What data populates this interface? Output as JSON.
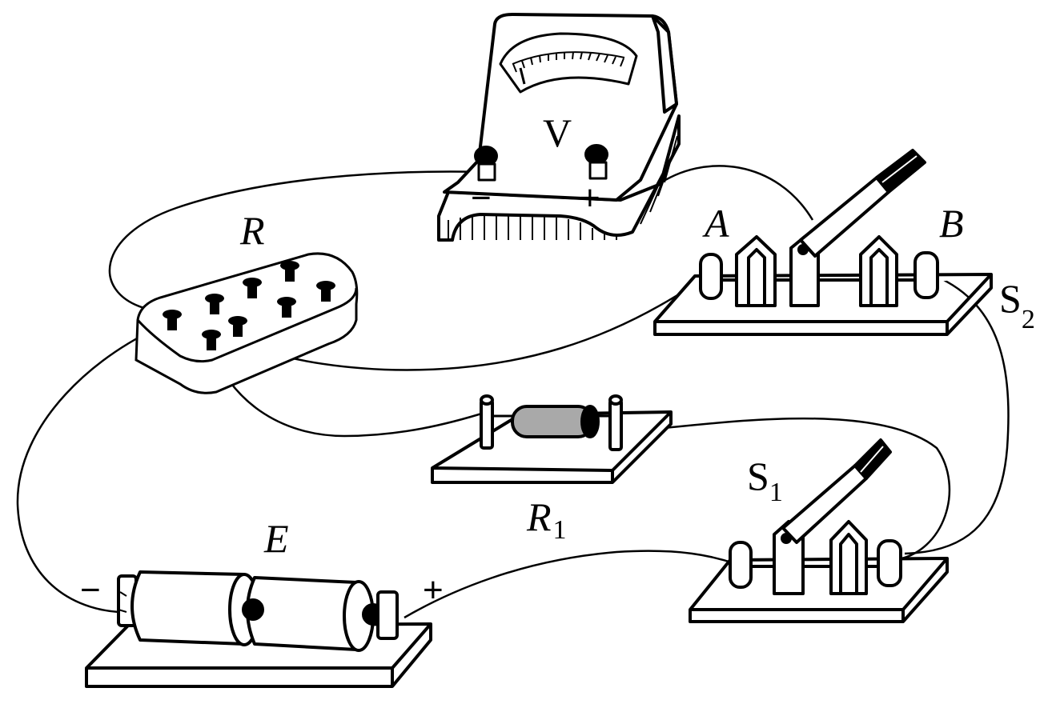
{
  "labels": {
    "voltmeter": "V",
    "voltmeter_minus": "−",
    "voltmeter_plus": "+",
    "resistance_box": "R",
    "resistor_main": "R",
    "resistor_sub": "1",
    "battery": "E",
    "battery_minus": "−",
    "battery_plus": "+",
    "switch2_terminal_a": "A",
    "switch2_terminal_b": "B",
    "switch2_main": "S",
    "switch2_sub": "2",
    "switch1_main": "S",
    "switch1_sub": "1"
  },
  "colors": {
    "line": "#000000",
    "background": "#ffffff",
    "resistor_body": "#a9a9a9"
  }
}
